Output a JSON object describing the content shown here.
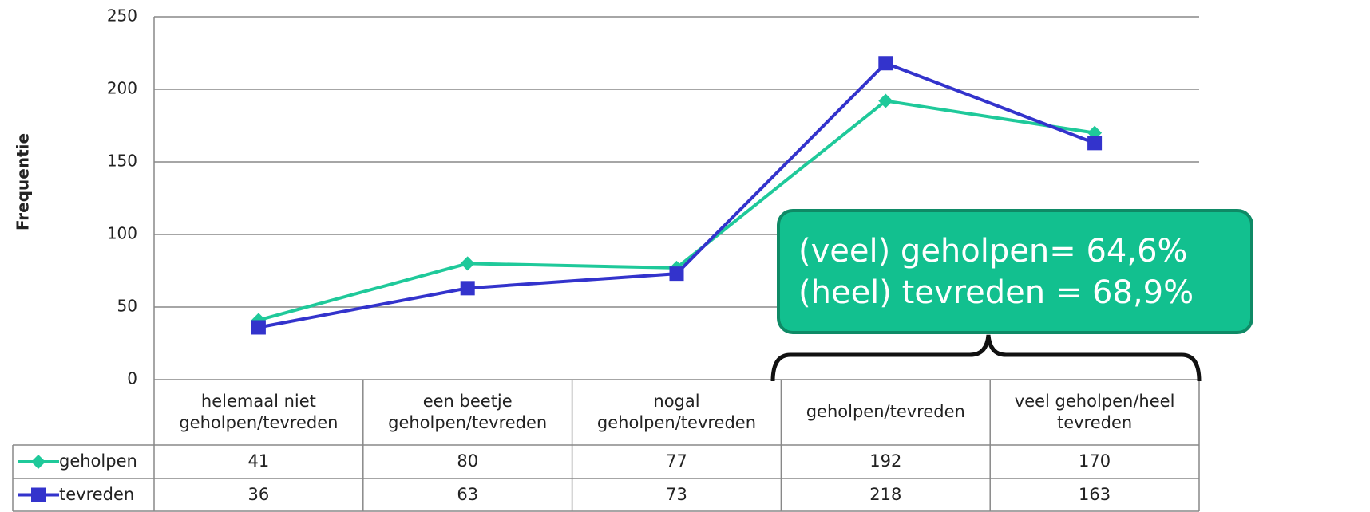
{
  "chart_data": {
    "type": "line",
    "y_label": "Frequentie",
    "categories": [
      "helemaal niet geholpen/tevreden",
      "een beetje geholpen/tevreden",
      "nogal geholpen/tevreden",
      "geholpen/tevreden",
      "veel geholpen/heel tevreden"
    ],
    "series": [
      {
        "name": "geholpen",
        "color": "#1fc99a",
        "marker": "diamond",
        "values": [
          41,
          80,
          77,
          192,
          170
        ]
      },
      {
        "name": "tevreden",
        "color": "#3333cc",
        "marker": "square",
        "values": [
          36,
          63,
          73,
          218,
          163
        ]
      }
    ],
    "ylim": [
      0,
      250
    ],
    "yticks": [
      0,
      50,
      100,
      150,
      200,
      250
    ],
    "grid": true,
    "annotations": [
      "(veel) geholpen= 64,6%",
      "(heel) tevreden = 68,9%"
    ]
  }
}
